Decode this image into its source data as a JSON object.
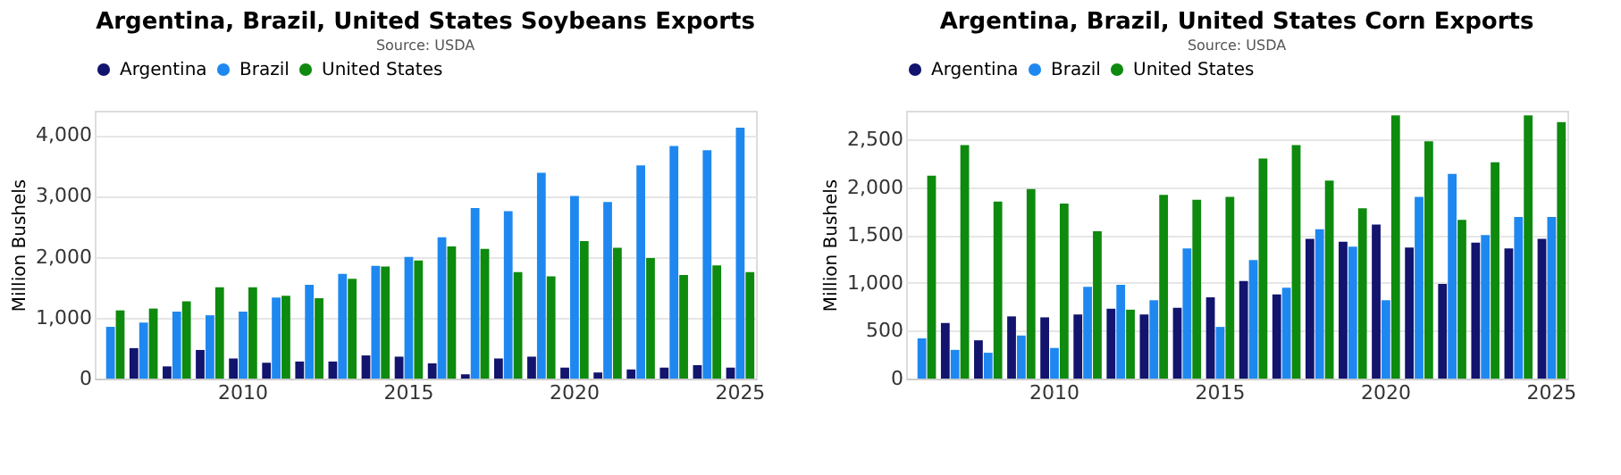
{
  "chart_data": [
    {
      "type": "bar",
      "title": "Argentina, Brazil, United States Soybeans Exports",
      "subtitle": "Source: USDA",
      "ylabel": "Million Bushels",
      "categories": [
        null,
        null,
        null,
        null,
        "2010",
        null,
        null,
        null,
        null,
        "2015",
        null,
        null,
        null,
        null,
        "2020",
        null,
        null,
        null,
        null,
        "2025"
      ],
      "series": [
        {
          "name": "Argentina",
          "color": "#12146e",
          "values": [
            null,
            500,
            200,
            470,
            330,
            260,
            280,
            280,
            380,
            360,
            250,
            70,
            330,
            360,
            180,
            100,
            150,
            180,
            220,
            180
          ]
        },
        {
          "name": "Brazil",
          "color": "#1e88f0",
          "values": [
            850,
            920,
            1100,
            1040,
            1100,
            1330,
            1540,
            1720,
            1850,
            2000,
            2320,
            2800,
            2750,
            3380,
            3000,
            2900,
            3500,
            3820,
            3750,
            4120
          ]
        },
        {
          "name": "United States",
          "color": "#0e8a0e",
          "values": [
            1120,
            1150,
            1270,
            1500,
            1500,
            1360,
            1320,
            1640,
            1840,
            1940,
            2170,
            2130,
            1750,
            1680,
            2260,
            2150,
            1980,
            1700,
            1860,
            1750
          ]
        }
      ],
      "ylim": [
        0,
        4400
      ],
      "yticks": [
        {
          "value": 0,
          "label": "0"
        },
        {
          "value": 1000,
          "label": "1,000"
        },
        {
          "value": 2000,
          "label": "2,000"
        },
        {
          "value": 3000,
          "label": "3,000"
        },
        {
          "value": 4000,
          "label": "4,000"
        }
      ],
      "grid": "y",
      "legend": "top"
    },
    {
      "type": "bar",
      "title": "Argentina, Brazil, United States Corn Exports",
      "subtitle": "Source: USDA",
      "ylabel": "Million Bushels",
      "categories": [
        null,
        null,
        null,
        null,
        "2010",
        null,
        null,
        null,
        null,
        "2015",
        null,
        null,
        null,
        null,
        "2020",
        null,
        null,
        null,
        null,
        "2025"
      ],
      "series": [
        {
          "name": "Argentina",
          "color": "#12146e",
          "values": [
            null,
            580,
            400,
            650,
            640,
            670,
            730,
            670,
            740,
            850,
            1020,
            880,
            1460,
            1430,
            1610,
            1370,
            990,
            1420,
            1360,
            1460
          ]
        },
        {
          "name": "Brazil",
          "color": "#1e88f0",
          "values": [
            420,
            300,
            270,
            450,
            320,
            960,
            980,
            820,
            1360,
            540,
            1240,
            950,
            1560,
            1380,
            820,
            1900,
            2140,
            1500,
            1690,
            1690
          ]
        },
        {
          "name": "United States",
          "color": "#0e8a0e",
          "values": [
            2120,
            2440,
            1850,
            1980,
            1830,
            1540,
            720,
            1920,
            1870,
            1900,
            2300,
            2440,
            2070,
            1780,
            2750,
            2480,
            1660,
            2260,
            2750,
            2680
          ]
        }
      ],
      "ylim": [
        0,
        2800
      ],
      "yticks": [
        {
          "value": 0,
          "label": "0"
        },
        {
          "value": 500,
          "label": "500"
        },
        {
          "value": 1000,
          "label": "1,000"
        },
        {
          "value": 1500,
          "label": "1,500"
        },
        {
          "value": 2000,
          "label": "2,000"
        },
        {
          "value": 2500,
          "label": "2,500"
        }
      ],
      "grid": "y",
      "legend": "top"
    }
  ]
}
